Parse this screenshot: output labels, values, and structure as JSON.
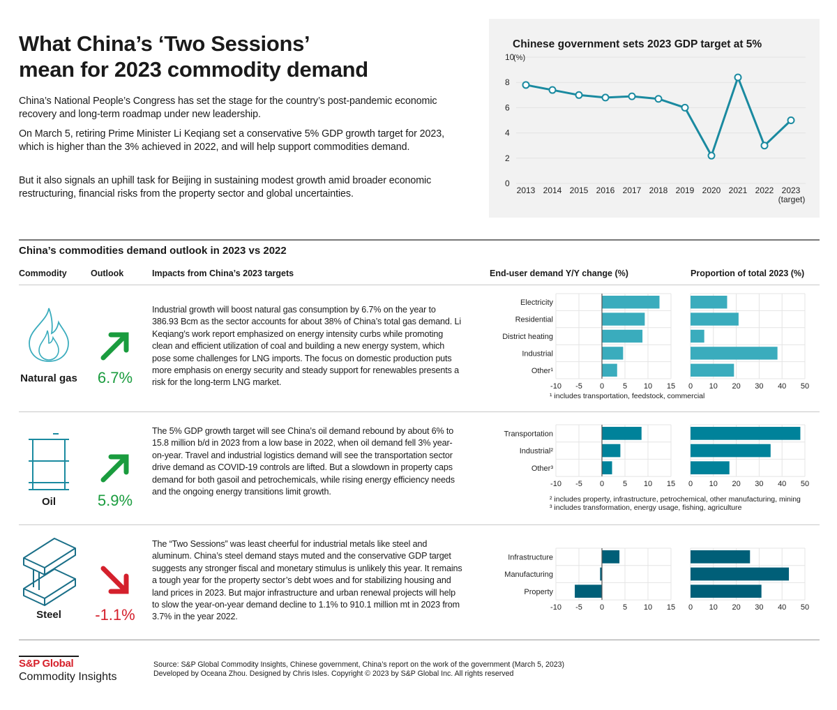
{
  "header": {
    "title_line1": "What China’s ‘Two Sessions’",
    "title_line2": "mean for 2023 commodity demand",
    "paragraphs": [
      "China’s National People’s Congress has set the stage for the country’s post-pandemic economic recovery and long-term roadmap under new leadership.",
      "On March 5, retiring Prime Minister Li Keqiang set a conservative 5% GDP growth target for 2023, which is higher than the 3% achieved in 2022, and will help support commodities demand.",
      "But it also signals an uphill task for Beijing in sustaining modest growth amid broader economic restructuring, financial risks from the property sector and global uncertainties."
    ]
  },
  "table": {
    "title": "China’s commodities demand outlook in 2023 vs 2022",
    "columns": {
      "commodity": "Commodity",
      "outlook": "Outlook",
      "impacts": "Impacts from China’s 2023 targets",
      "enduser": "End-user demand Y/Y change (%)",
      "proportion": "Proportion of total 2023 (%)"
    },
    "rows": [
      {
        "name": "Natural gas",
        "icon": "flame-icon",
        "outlook": "6.7%",
        "direction": "up",
        "color": "#1a9c3e",
        "text": "Industrial growth will boost natural gas consumption by 6.7% on the year to 386.93 Bcm as the sector accounts for about 38% of China’s total gas demand. Li Keqiang’s work report emphasized on energy intensity curbs while promoting clean and efficient utilization of coal and building a new energy system, which pose some challenges for LNG imports. The focus on domestic production puts more emphasis on energy security and steady support for renewables presents a risk for the long-term LNG market.",
        "footnotes": [
          "¹ includes transportation, feedstock, commercial"
        ]
      },
      {
        "name": "Oil",
        "icon": "oil-barrel-icon",
        "outlook": "5.9%",
        "direction": "up",
        "color": "#1a9c3e",
        "text": "The 5% GDP growth target will see China’s oil demand rebound by about 6% to 15.8 million b/d in 2023 from a low base in 2022, when oil demand fell 3% year-on-year. Travel and industrial logistics demand will see the transportation sector drive demand as COVID-19 controls are lifted. But a slowdown in property caps demand for both gasoil and petrochemicals, while rising energy efficiency needs and the ongoing energy transitions limit growth.",
        "footnotes": [
          "² includes property, infrastructure, petrochemical, other manufacturing, mining",
          "³ includes transformation, energy usage, fishing, agriculture"
        ]
      },
      {
        "name": "Steel",
        "icon": "steel-beam-icon",
        "outlook": "-1.1%",
        "direction": "down",
        "color": "#d4202c",
        "text": "The “Two Sessions” was least cheerful for industrial metals like steel and aluminum. China’s steel demand stays muted and the conservative GDP target suggests any stronger fiscal and monetary stimulus is unlikely this year. It remains a tough year for the property sector’s debt woes and for stabilizing housing and land prices in 2023. But major infrastructure and urban renewal projects will help to slow the year-on-year demand decline to 1.1% to 910.1 million mt in 2023 from 3.7% in the year 2022.",
        "footnotes": []
      }
    ]
  },
  "chart_data": [
    {
      "id": "gdp",
      "type": "line",
      "title": "Chinese government sets 2023 GDP target at 5%",
      "ylabel": "(%)",
      "categories": [
        "2013",
        "2014",
        "2015",
        "2016",
        "2017",
        "2018",
        "2019",
        "2020",
        "2021",
        "2022",
        "2023"
      ],
      "category_sublabels": {
        "2023": "(target)"
      },
      "values": [
        7.8,
        7.4,
        7.0,
        6.8,
        6.9,
        6.7,
        6.0,
        2.2,
        8.4,
        3.0,
        5.0
      ],
      "ylim": [
        0,
        10
      ],
      "yticks": [
        0,
        2,
        4,
        6,
        8,
        10
      ],
      "grid": true,
      "color": "#1a8aa0"
    },
    {
      "id": "gas-yoy",
      "type": "bar",
      "orientation": "horizontal",
      "categories": [
        "Electricity",
        "Residential",
        "District heating",
        "Industrial",
        "Other¹"
      ],
      "values": [
        12.5,
        9.3,
        8.8,
        4.6,
        3.3
      ],
      "xlim": [
        -10,
        15
      ],
      "xticks": [
        -10,
        -5,
        0,
        5,
        10,
        15
      ],
      "color": "#3aacbd",
      "grid": true
    },
    {
      "id": "gas-share",
      "type": "bar",
      "orientation": "horizontal",
      "categories": [
        "Electricity",
        "Residential",
        "District heating",
        "Industrial",
        "Other¹"
      ],
      "values": [
        16,
        21,
        6,
        38,
        19
      ],
      "xlim": [
        0,
        50
      ],
      "xticks": [
        0,
        10,
        20,
        30,
        40,
        50
      ],
      "color": "#3aacbd",
      "grid": true
    },
    {
      "id": "oil-yoy",
      "type": "bar",
      "orientation": "horizontal",
      "categories": [
        "Transportation",
        "Industrial²",
        "Other³"
      ],
      "values": [
        8.6,
        4.0,
        2.2
      ],
      "xlim": [
        -10,
        15
      ],
      "xticks": [
        -10,
        -5,
        0,
        5,
        10,
        15
      ],
      "color": "#00829a",
      "grid": true
    },
    {
      "id": "oil-share",
      "type": "bar",
      "orientation": "horizontal",
      "categories": [
        "Transportation",
        "Industrial²",
        "Other³"
      ],
      "values": [
        48,
        35,
        17
      ],
      "xlim": [
        0,
        50
      ],
      "xticks": [
        0,
        10,
        20,
        30,
        40,
        50
      ],
      "color": "#00829a",
      "grid": true
    },
    {
      "id": "steel-yoy",
      "type": "bar",
      "orientation": "horizontal",
      "categories": [
        "Infrastructure",
        "Manufacturing",
        "Property"
      ],
      "values": [
        3.8,
        -0.4,
        -5.9
      ],
      "xlim": [
        -10,
        15
      ],
      "xticks": [
        -10,
        -5,
        0,
        5,
        10,
        15
      ],
      "color": "#005f78",
      "grid": true
    },
    {
      "id": "steel-share",
      "type": "bar",
      "orientation": "horizontal",
      "categories": [
        "Infrastructure",
        "Manufacturing",
        "Property"
      ],
      "values": [
        26,
        43,
        31
      ],
      "xlim": [
        0,
        50
      ],
      "xticks": [
        0,
        10,
        20,
        30,
        40,
        50
      ],
      "color": "#005f78",
      "grid": true
    }
  ],
  "footer": {
    "logo_line1": "S&P Global",
    "logo_line2": "Commodity Insights",
    "source": "Source: S&P Global Commodity Insights, Chinese government, China’s report on the work of the government (March 5, 2023)",
    "credits": "Developed by Oceana Zhou. Designed by Chris Isles. Copyright © 2023 by S&P Global Inc. All rights reserved"
  }
}
